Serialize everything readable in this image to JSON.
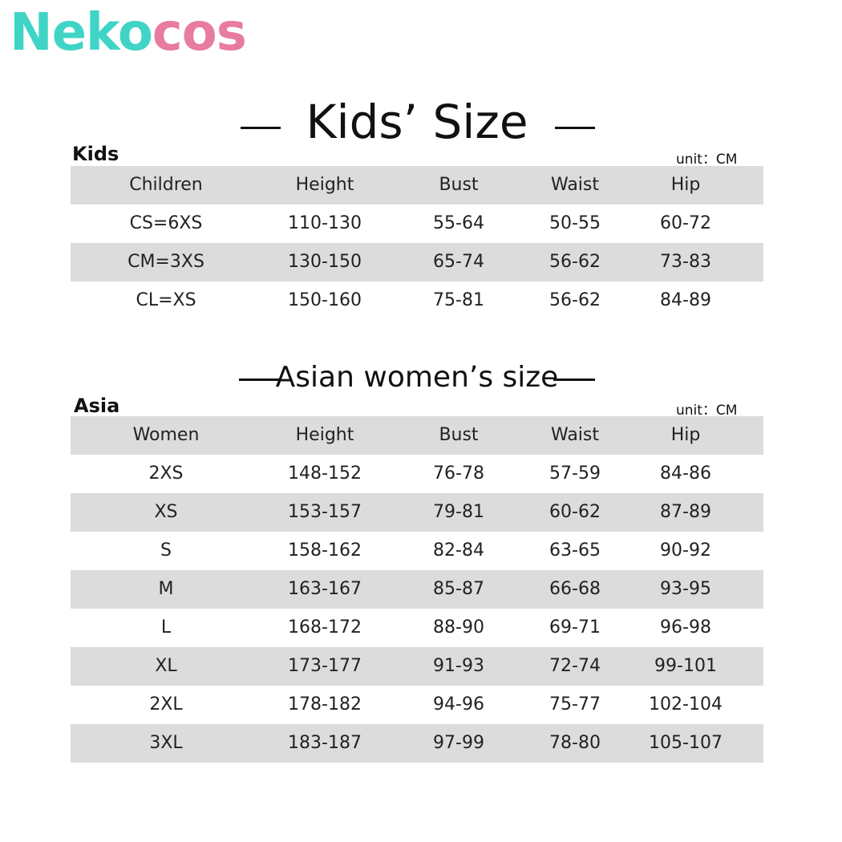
{
  "logo_parts": [
    "Neko",
    "cos"
  ],
  "sections": [
    {
      "title": "Kids’ Size",
      "label": "Kids",
      "unit": "unit：CM",
      "table": {
        "header": [
          "Children",
          "Height",
          "Bust",
          "Waist",
          "Hip"
        ],
        "rows": [
          [
            "CS=6XS",
            "110-130",
            "55-64",
            "50-55",
            "60-72"
          ],
          [
            "CM=3XS",
            "130-150",
            "65-74",
            "56-62",
            "73-83"
          ],
          [
            "CL=XS",
            "150-160",
            "75-81",
            "56-62",
            "84-89"
          ]
        ]
      }
    },
    {
      "title": "Asian women’s size",
      "label": "Asia",
      "unit": "unit：CM",
      "table": {
        "header": [
          "Women",
          "Height",
          "Bust",
          "Waist",
          "Hip"
        ],
        "rows": [
          [
            "2XS",
            "148-152",
            "76-78",
            "57-59",
            "84-86"
          ],
          [
            "XS",
            "153-157",
            "79-81",
            "60-62",
            "87-89"
          ],
          [
            "S",
            "158-162",
            "82-84",
            "63-65",
            "90-92"
          ],
          [
            "M",
            "163-167",
            "85-87",
            "66-68",
            "93-95"
          ],
          [
            "L",
            "168-172",
            "88-90",
            "69-71",
            "96-98"
          ],
          [
            "XL",
            "173-177",
            "91-93",
            "72-74",
            "99-101"
          ],
          [
            "2XL",
            "178-182",
            "94-96",
            "75-77",
            "102-104"
          ],
          [
            "3XL",
            "183-187",
            "97-99",
            "78-80",
            "105-107"
          ]
        ]
      }
    }
  ]
}
